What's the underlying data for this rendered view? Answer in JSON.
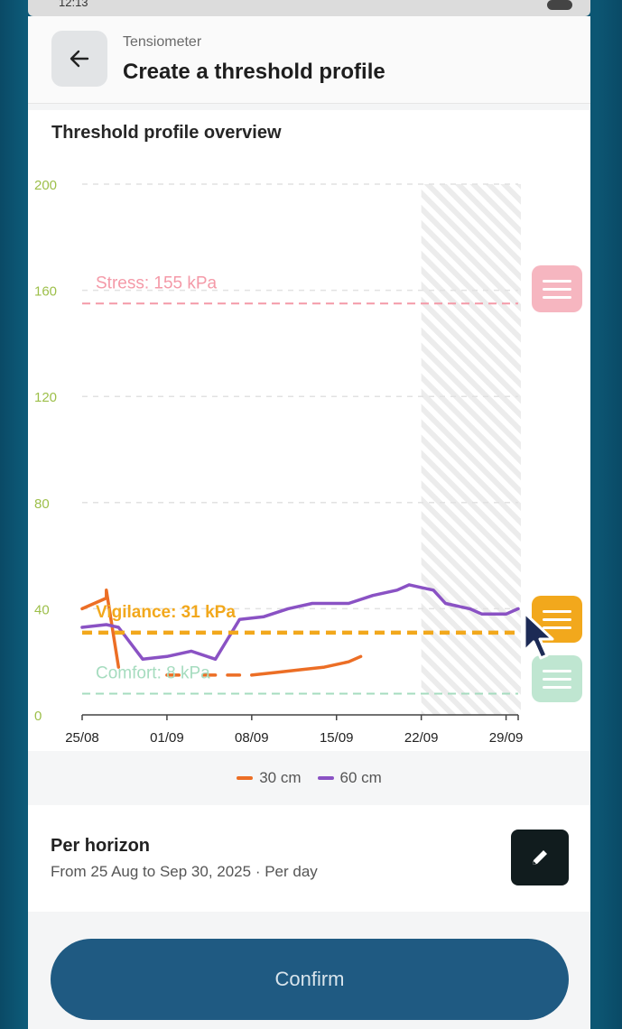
{
  "status_bar": {
    "time": "12:13"
  },
  "header": {
    "subtitle": "Tensiometer",
    "title": "Create a threshold profile"
  },
  "card": {
    "title": "Threshold profile overview"
  },
  "chart_data": {
    "type": "line",
    "title": "Threshold profile overview",
    "ylim": [
      0,
      200
    ],
    "y_ticks": [
      0,
      40,
      80,
      120,
      160,
      200
    ],
    "x_tick_labels": [
      "25/08",
      "01/09",
      "08/09",
      "15/09",
      "22/09",
      "29/09"
    ],
    "x_start": "2025-08-25",
    "x_end": "2025-09-30",
    "forecast_shading_from": "2025-09-22",
    "grid": true,
    "thresholds": [
      {
        "name": "Stress",
        "label": "Stress: 155 kPa",
        "value": 155,
        "color": "#f49aa8"
      },
      {
        "name": "Vigilance",
        "label": "Vigilance: 31 kPa",
        "value": 31,
        "color": "#f2a81c"
      },
      {
        "name": "Comfort",
        "label": "Comfort: 8 kPa",
        "value": 8,
        "color": "#a6dcbf"
      }
    ],
    "series": [
      {
        "name": "30 cm",
        "color": "#ec6e25",
        "segments": [
          [
            [
              "2025-08-25",
              40
            ],
            [
              "2025-08-27",
              44
            ],
            [
              "2025-08-27",
              47
            ],
            [
              "2025-08-28",
              18
            ]
          ],
          [
            [
              "2025-09-01",
              15
            ],
            [
              "2025-09-02",
              15
            ]
          ],
          [
            [
              "2025-09-04",
              15
            ],
            [
              "2025-09-05",
              15
            ]
          ],
          [
            [
              "2025-09-06",
              15
            ],
            [
              "2025-09-07",
              15
            ]
          ],
          [
            [
              "2025-09-08",
              15
            ],
            [
              "2025-09-10",
              16
            ],
            [
              "2025-09-12",
              17
            ],
            [
              "2025-09-14",
              18
            ],
            [
              "2025-09-16",
              20
            ],
            [
              "2025-09-17",
              22
            ]
          ]
        ]
      },
      {
        "name": "60 cm",
        "color": "#8a52c4",
        "segments": [
          [
            [
              "2025-08-25",
              33
            ],
            [
              "2025-08-27",
              34
            ],
            [
              "2025-08-28",
              33
            ],
            [
              "2025-08-30",
              21
            ],
            [
              "2025-09-01",
              22
            ],
            [
              "2025-09-03",
              24
            ],
            [
              "2025-09-05",
              21
            ],
            [
              "2025-09-07",
              36
            ],
            [
              "2025-09-09",
              37
            ],
            [
              "2025-09-11",
              40
            ],
            [
              "2025-09-13",
              42
            ],
            [
              "2025-09-16",
              42
            ],
            [
              "2025-09-18",
              45
            ],
            [
              "2025-09-20",
              47
            ],
            [
              "2025-09-21",
              49
            ],
            [
              "2025-09-22",
              48
            ],
            [
              "2025-09-23",
              47
            ],
            [
              "2025-09-24",
              42
            ],
            [
              "2025-09-25",
              41
            ],
            [
              "2025-09-26",
              40
            ],
            [
              "2025-09-27",
              38
            ],
            [
              "2025-09-29",
              38
            ],
            [
              "2025-09-30",
              40
            ]
          ]
        ]
      }
    ]
  },
  "legend": [
    {
      "label": "30 cm",
      "color": "#ec6e25"
    },
    {
      "label": "60 cm",
      "color": "#8a52c4"
    }
  ],
  "horizon": {
    "title": "Per horizon",
    "subtitle": "From 25 Aug to Sep 30, 2025 · Per day"
  },
  "confirm": {
    "label": "Confirm"
  }
}
